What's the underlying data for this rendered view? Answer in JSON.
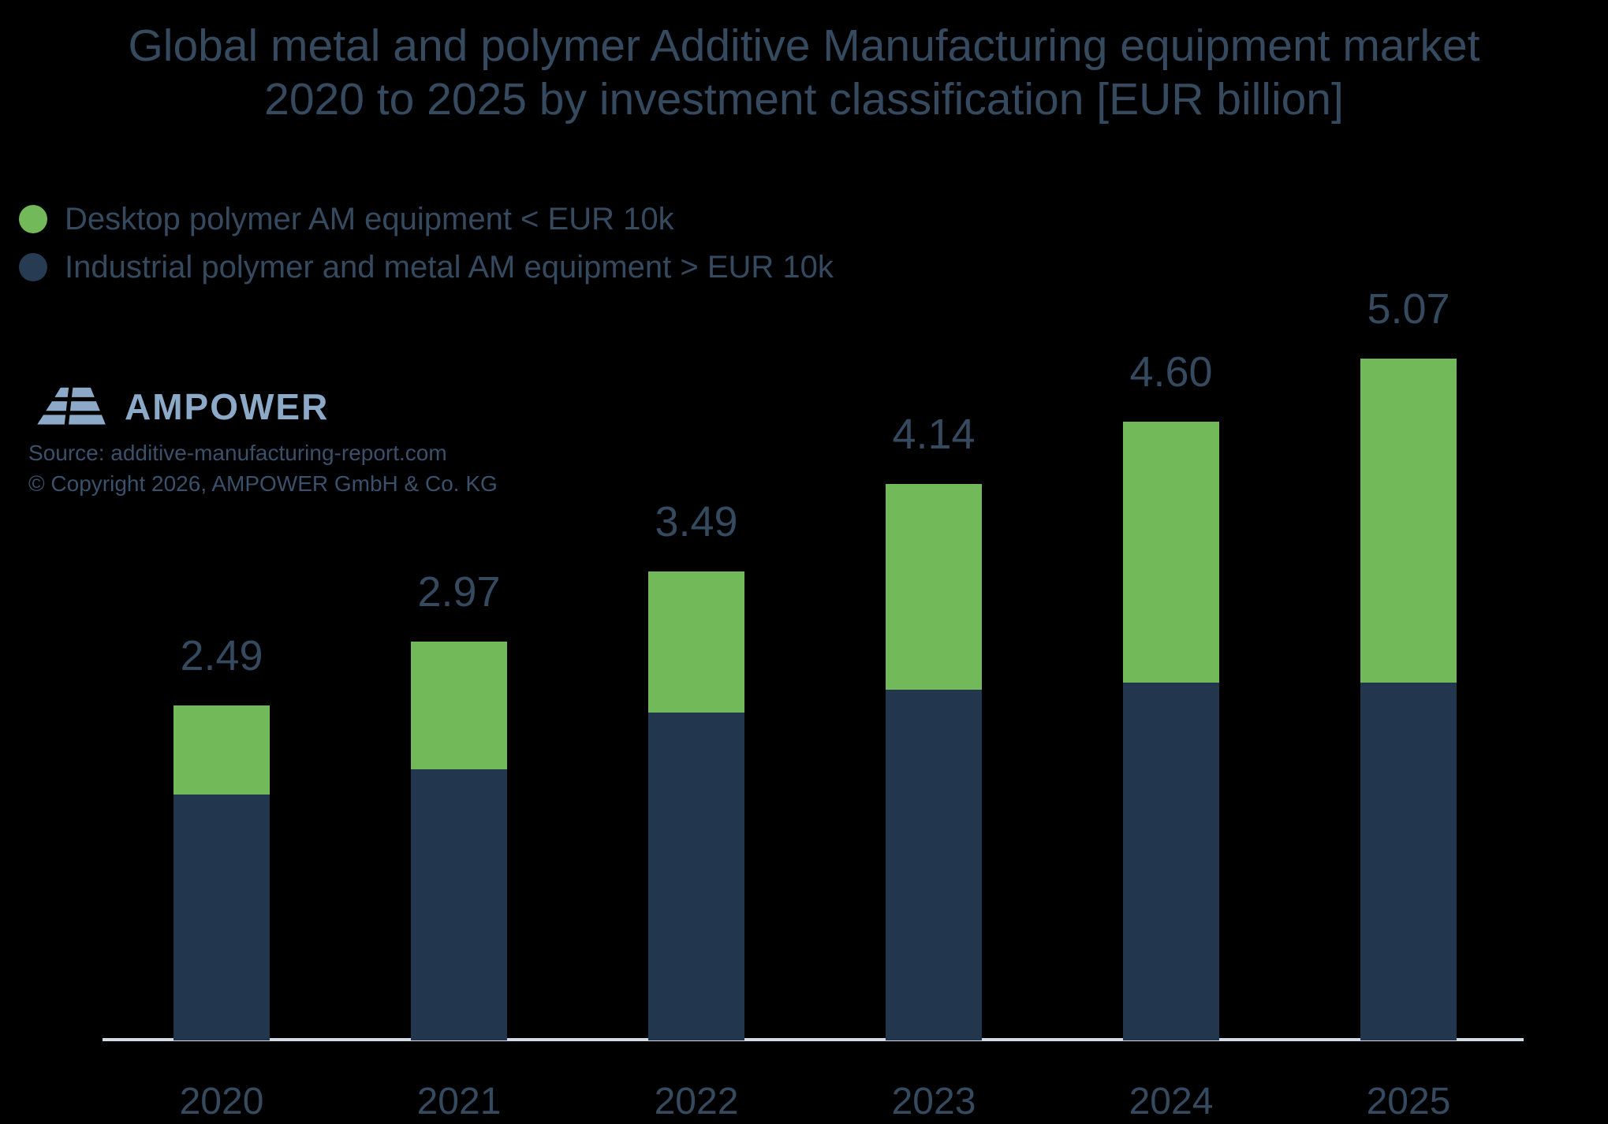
{
  "header": {
    "title_line1": "Global metal and polymer Additive Manufacturing equipment market",
    "title_line2": "2020 to 2025 by investment classification [EUR billion]"
  },
  "legend": {
    "items": [
      {
        "label": "Desktop polymer AM equipment < EUR 10k",
        "color": "#72b95a"
      },
      {
        "label": "Industrial polymer and metal AM equipment > EUR 10k",
        "color": "#273c53"
      }
    ]
  },
  "branding": {
    "logo_text": "AMPOWER",
    "logo_color": "#8ca9c7",
    "source": "Source: additive-manufacturing-report.com",
    "copyright": "© Copyright 2026, AMPOWER GmbH & Co. KG"
  },
  "colors": {
    "background": "#000000",
    "text": "#35495f",
    "desktop_green": "#72b95a",
    "industrial_navy": "#22374e",
    "axis_line": "#cfdbe7"
  },
  "chart_data": {
    "type": "bar",
    "stacked": true,
    "title": "Global metal and polymer Additive Manufacturing equipment market 2020 to 2025 by investment classification [EUR billion]",
    "categories": [
      "2020",
      "2021",
      "2022",
      "2023",
      "2024",
      "2025"
    ],
    "series": [
      {
        "name": "Industrial polymer and metal AM equipment > EUR 10k",
        "color": "#22374e",
        "values": [
          1.83,
          2.02,
          2.44,
          2.61,
          2.66,
          2.66
        ]
      },
      {
        "name": "Desktop polymer AM equipment < EUR 10k",
        "color": "#72b95a",
        "values": [
          0.66,
          0.95,
          1.05,
          1.53,
          1.94,
          2.41
        ]
      }
    ],
    "total_labels": [
      "2.49",
      "2.97",
      "3.49",
      "4.14",
      "4.60",
      "5.07"
    ],
    "unit": "EUR billion",
    "ylim": [
      0,
      5.5
    ],
    "grid": false,
    "legend_position": "top-left",
    "value_labels": "totals above bars"
  }
}
